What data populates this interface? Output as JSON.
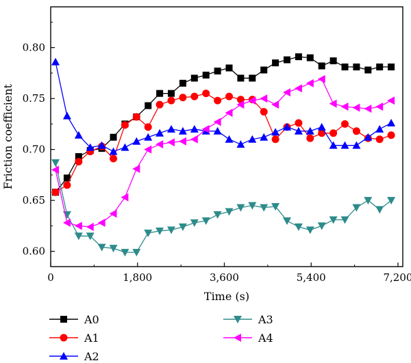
{
  "chart_data": {
    "type": "line",
    "xlabel": "Time (s)",
    "ylabel": "Friction coefficient",
    "xlim": [
      0,
      7300
    ],
    "ylim": [
      0.585,
      0.84
    ],
    "x_ticks": [
      0,
      1800,
      3600,
      5400,
      7200
    ],
    "x_tick_labels": [
      "0",
      "1,800",
      "3,600",
      "5,400",
      "7,200"
    ],
    "y_ticks": [
      0.6,
      0.65,
      0.7,
      0.75,
      0.8
    ],
    "y_tick_labels": [
      "0.60",
      "0.65",
      "0.70",
      "0.75",
      "0.80"
    ],
    "grid": false,
    "legend_position": "bottom",
    "series": [
      {
        "name": "A0",
        "color": "#000000",
        "marker": "square",
        "x": [
          100,
          340,
          580,
          820,
          1060,
          1300,
          1540,
          1780,
          2020,
          2260,
          2500,
          2740,
          2980,
          3220,
          3460,
          3700,
          3940,
          4180,
          4420,
          4660,
          4900,
          5140,
          5380,
          5620,
          5860,
          6100,
          6340,
          6580,
          6820,
          7060
        ],
        "y": [
          0.658,
          0.672,
          0.693,
          0.699,
          0.701,
          0.712,
          0.725,
          0.732,
          0.743,
          0.755,
          0.755,
          0.765,
          0.77,
          0.773,
          0.777,
          0.78,
          0.77,
          0.77,
          0.778,
          0.785,
          0.788,
          0.791,
          0.79,
          0.782,
          0.787,
          0.781,
          0.781,
          0.778,
          0.781,
          0.781
        ]
      },
      {
        "name": "A1",
        "color": "#ff0000",
        "marker": "circle",
        "x": [
          100,
          340,
          580,
          820,
          1060,
          1300,
          1540,
          1780,
          2020,
          2260,
          2500,
          2740,
          2980,
          3220,
          3460,
          3700,
          3940,
          4180,
          4420,
          4660,
          4900,
          5140,
          5380,
          5620,
          5860,
          6100,
          6340,
          6580,
          6820,
          7060
        ],
        "y": [
          0.658,
          0.665,
          0.688,
          0.698,
          0.703,
          0.691,
          0.724,
          0.732,
          0.722,
          0.744,
          0.748,
          0.751,
          0.752,
          0.755,
          0.748,
          0.752,
          0.749,
          0.749,
          0.737,
          0.71,
          0.722,
          0.726,
          0.711,
          0.716,
          0.716,
          0.725,
          0.718,
          0.711,
          0.71,
          0.714
        ]
      },
      {
        "name": "A2",
        "color": "#0000ff",
        "marker": "triangle-up",
        "x": [
          100,
          340,
          580,
          820,
          1060,
          1300,
          1540,
          1780,
          2020,
          2260,
          2500,
          2740,
          2980,
          3220,
          3460,
          3700,
          3940,
          4180,
          4420,
          4660,
          4900,
          5140,
          5380,
          5620,
          5860,
          6100,
          6340,
          6580,
          6820,
          7060
        ],
        "y": [
          0.786,
          0.733,
          0.714,
          0.702,
          0.704,
          0.698,
          0.702,
          0.708,
          0.712,
          0.716,
          0.72,
          0.718,
          0.72,
          0.718,
          0.718,
          0.71,
          0.705,
          0.71,
          0.712,
          0.717,
          0.722,
          0.718,
          0.718,
          0.722,
          0.704,
          0.704,
          0.704,
          0.712,
          0.72,
          0.726
        ]
      },
      {
        "name": "A3",
        "color": "#2e8b8b",
        "marker": "triangle-down",
        "x": [
          100,
          340,
          580,
          820,
          1060,
          1300,
          1540,
          1780,
          2020,
          2260,
          2500,
          2740,
          2980,
          3220,
          3460,
          3700,
          3940,
          4180,
          4420,
          4660,
          4900,
          5140,
          5380,
          5620,
          5860,
          6100,
          6340,
          6580,
          6820,
          7060
        ],
        "y": [
          0.687,
          0.636,
          0.615,
          0.615,
          0.604,
          0.603,
          0.599,
          0.599,
          0.618,
          0.62,
          0.621,
          0.624,
          0.628,
          0.63,
          0.636,
          0.639,
          0.643,
          0.645,
          0.643,
          0.644,
          0.63,
          0.624,
          0.621,
          0.625,
          0.631,
          0.631,
          0.643,
          0.65,
          0.641,
          0.65
        ]
      },
      {
        "name": "A4",
        "color": "#ff00ff",
        "marker": "triangle-left",
        "x": [
          100,
          340,
          580,
          820,
          1060,
          1300,
          1540,
          1780,
          2020,
          2260,
          2500,
          2740,
          2980,
          3220,
          3460,
          3700,
          3940,
          4180,
          4420,
          4660,
          4900,
          5140,
          5380,
          5620,
          5860,
          6100,
          6340,
          6580,
          6820,
          7060
        ],
        "y": [
          0.68,
          0.628,
          0.625,
          0.624,
          0.628,
          0.637,
          0.653,
          0.681,
          0.7,
          0.705,
          0.707,
          0.708,
          0.71,
          0.72,
          0.727,
          0.736,
          0.744,
          0.748,
          0.75,
          0.744,
          0.756,
          0.76,
          0.765,
          0.769,
          0.745,
          0.742,
          0.741,
          0.74,
          0.742,
          0.748
        ]
      }
    ]
  }
}
